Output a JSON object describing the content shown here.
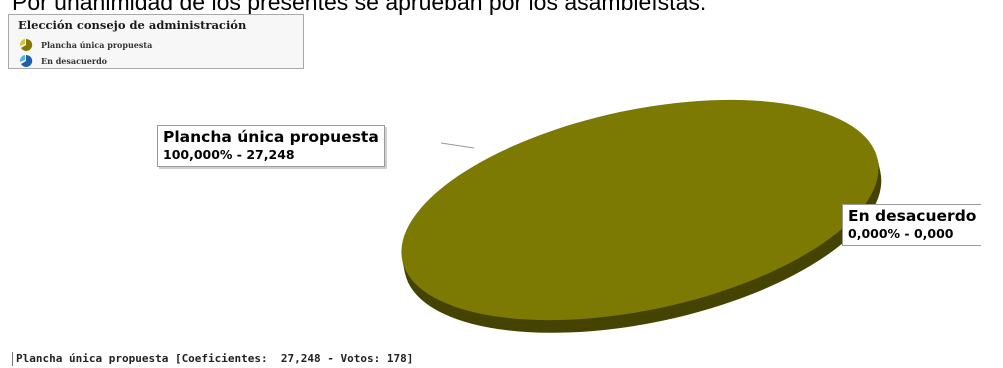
{
  "caption": "Por unanimidad de los presentes se aprueban por los asambleístas.",
  "legend": {
    "title": "Elección consejo de administración",
    "items": [
      {
        "label": "Plancha única propuesta",
        "color": "#807a00",
        "icon": "pie-slice-icon-olive"
      },
      {
        "label": "En desacuerdo",
        "color": "#1f5fa8",
        "icon": "pie-slice-icon-blue"
      }
    ]
  },
  "chart_data": {
    "type": "pie",
    "title": "Elección consejo de administración",
    "slices": [
      {
        "name": "Plancha única propuesta",
        "percent": 100.0,
        "value": 27.248,
        "label_line1": "Plancha única propuesta",
        "label_line2": "100,000% - 27,248",
        "color": "#7d7a03"
      },
      {
        "name": "En desacuerdo",
        "percent": 0.0,
        "value": 0.0,
        "label_line1": "En desacuerdo",
        "label_line2": "0,000% - 0,000",
        "color": "#1f5fa8"
      }
    ],
    "legend": "top-left",
    "style": "3d-tilted"
  },
  "footer": "Plancha única propuesta [Coeficientes:  27,248 - Votos: 178]"
}
